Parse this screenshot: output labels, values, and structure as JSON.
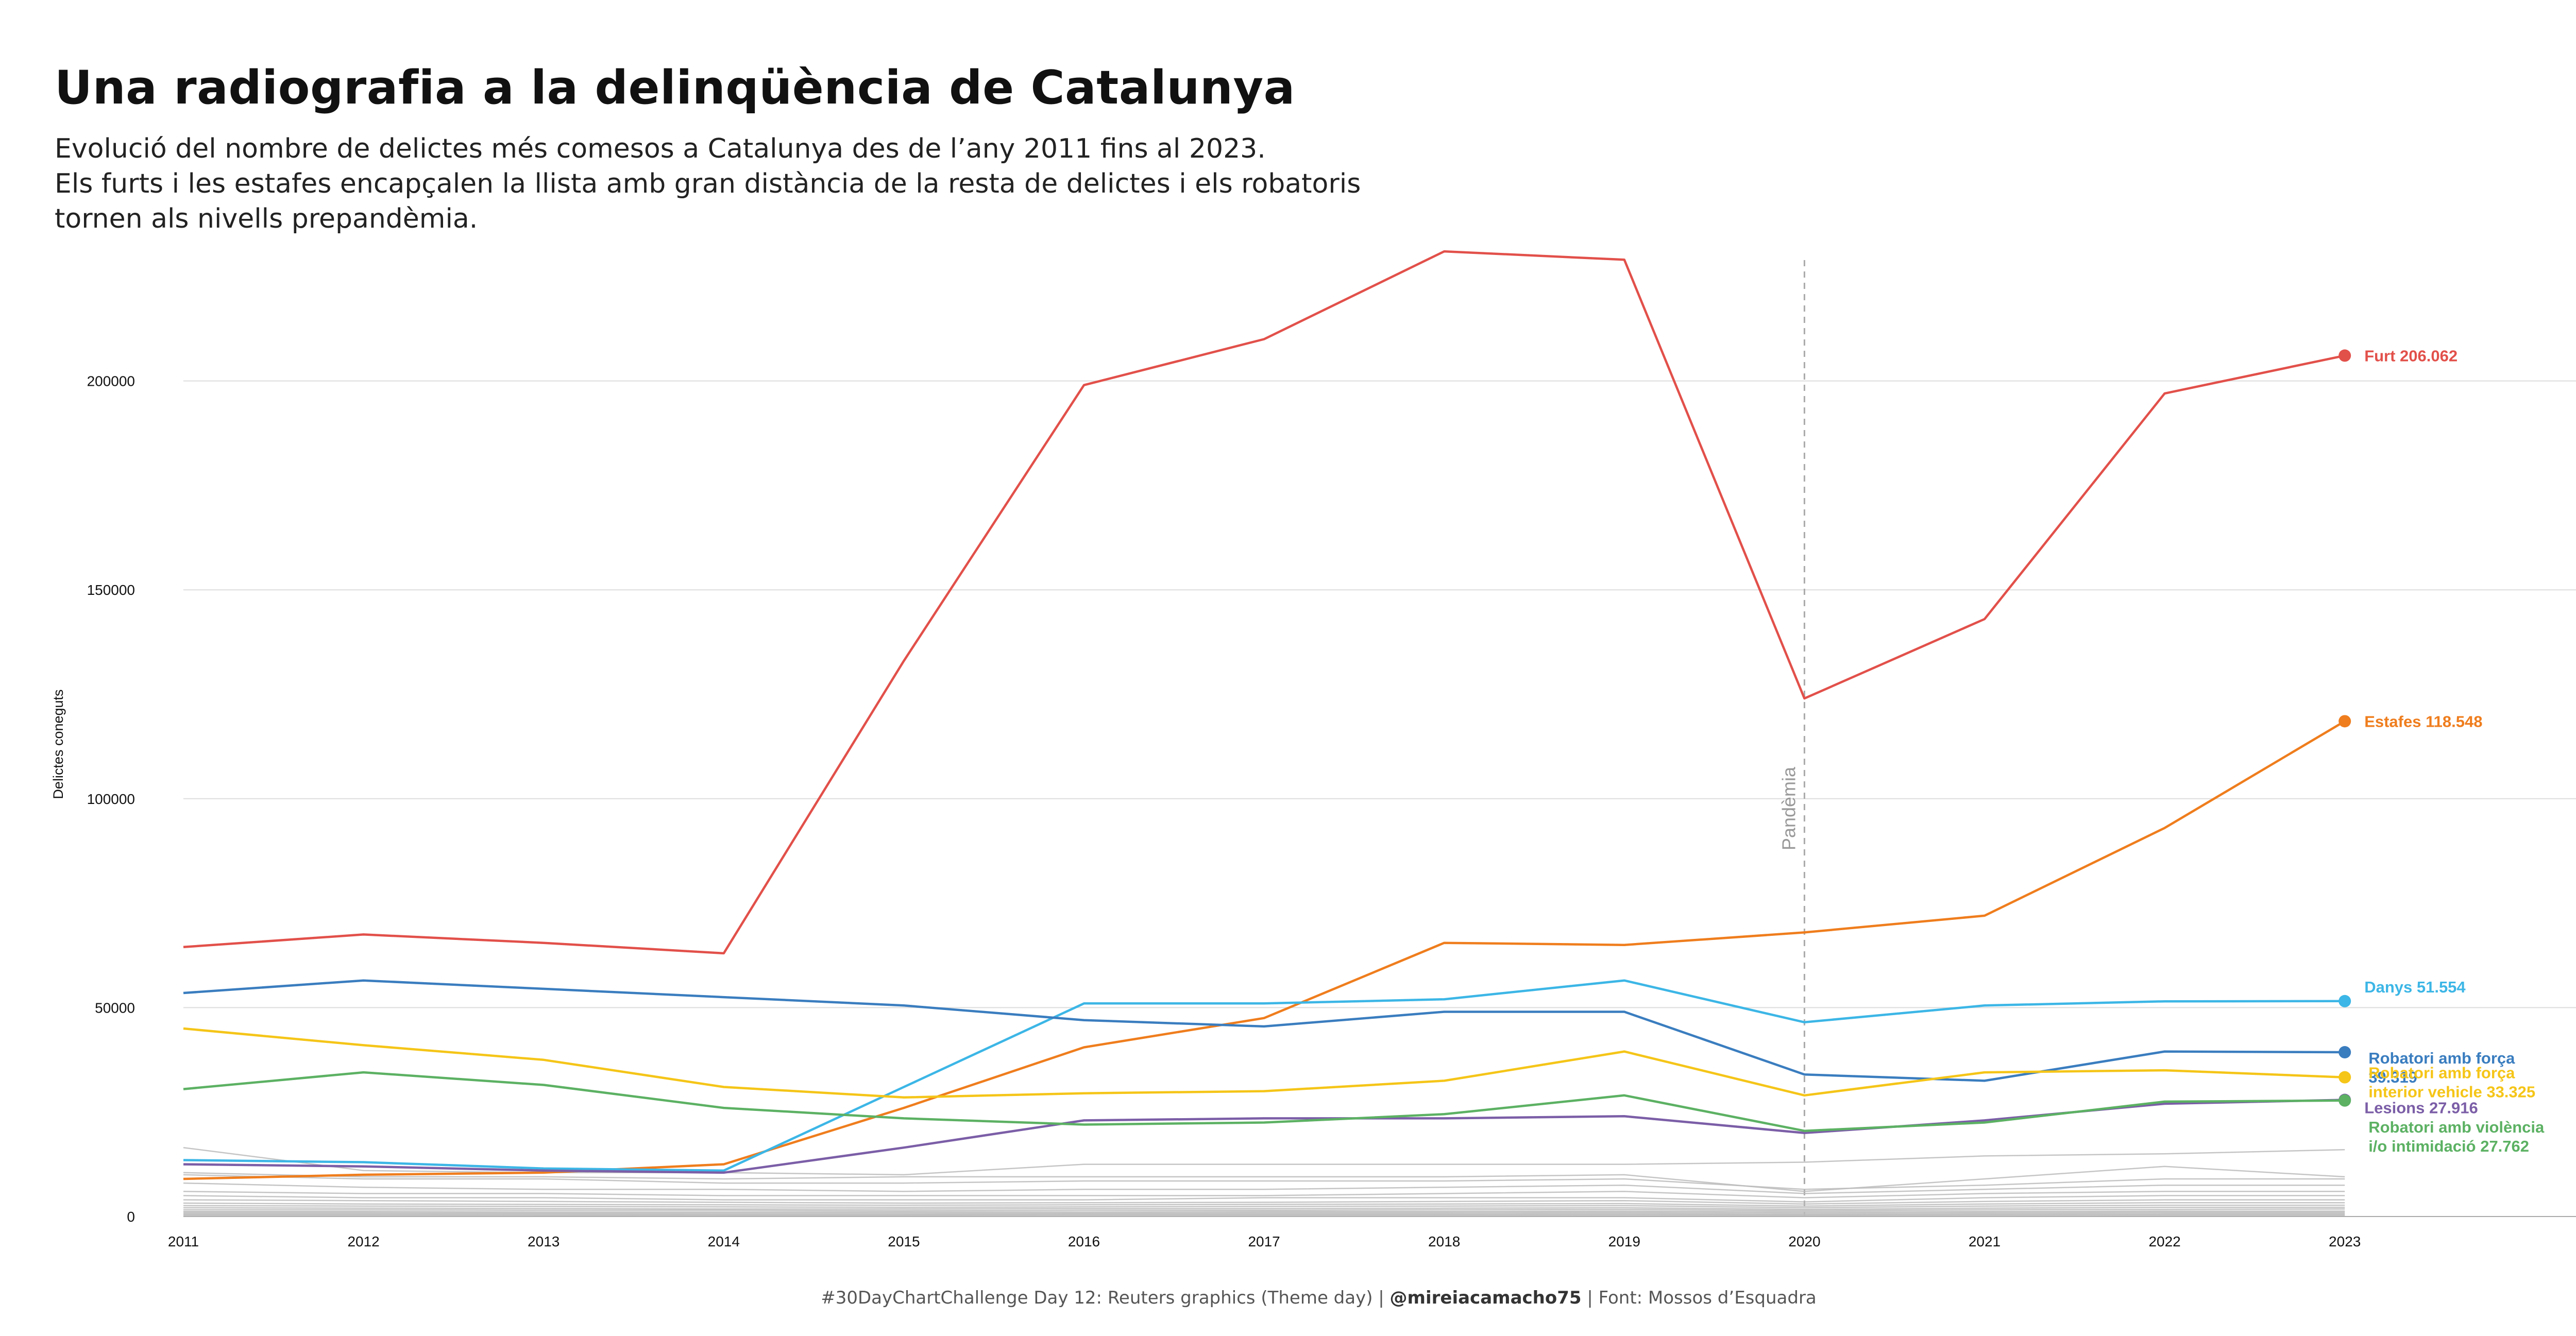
{
  "page": {
    "title": "Una radiografia a la delinqüència de Catalunya",
    "subtitle_lines": [
      "Evolució del nombre de delictes més comesos a Catalunya des de l’any 2011 fins al 2023.",
      "Els furts i les estafes encapçalen la llista amb gran distància de la resta de delictes i els robatoris",
      "tornen als nivells prepandèmia."
    ],
    "caption": {
      "prefix": "#30DayChartChallenge Day 12: Reuters graphics (Theme day) | ",
      "handle": "@mireiacamacho75",
      "suffix": " | Font: Mossos d’Esquadra"
    }
  },
  "chart_data": {
    "type": "line",
    "title": "Una radiografia a la delinqüència de Catalunya",
    "xlabel": "",
    "ylabel": "Delictes coneguts",
    "x": [
      2011,
      2012,
      2013,
      2014,
      2015,
      2016,
      2017,
      2018,
      2019,
      2020,
      2021,
      2022,
      2023
    ],
    "xlim": [
      2011,
      2024.3
    ],
    "ylim": [
      0,
      232000
    ],
    "yticks": [
      0,
      50000,
      100000,
      150000,
      200000
    ],
    "ytick_labels": [
      "0",
      "50000",
      "100000",
      "150000",
      "200000"
    ],
    "grid": "horizontal",
    "annotation": {
      "x": 2020,
      "text": "Pandèmia",
      "style": "dashed vertical line"
    },
    "series": [
      {
        "label": "Furt 206.062",
        "color": "#e2504a",
        "values": [
          64500,
          67500,
          65500,
          63000,
          133000,
          199000,
          210000,
          231000,
          229000,
          124000,
          143000,
          197000,
          206062
        ]
      },
      {
        "label": "Estafes 118.548",
        "color": "#ef7d1d",
        "values": [
          9000,
          10000,
          10500,
          12500,
          26000,
          40500,
          47500,
          65500,
          65000,
          68000,
          72000,
          93000,
          118548
        ]
      },
      {
        "label": "Danys 51.554",
        "color": "#3cb6e6",
        "values": [
          13500,
          13000,
          11500,
          11000,
          31000,
          51000,
          51000,
          52000,
          56500,
          46500,
          50500,
          51500,
          51554
        ]
      },
      {
        "label_lines": [
          "Robatori amb força",
          "39.319"
        ],
        "color": "#3a7dbf",
        "values": [
          53500,
          56500,
          54500,
          52500,
          50500,
          47000,
          45500,
          49000,
          49000,
          34000,
          32500,
          39500,
          39319
        ]
      },
      {
        "label_lines": [
          "Robatori amb força",
          "interior vehicle 33.325"
        ],
        "color": "#f5c518",
        "values": [
          45000,
          41000,
          37500,
          31000,
          28500,
          29500,
          30000,
          32500,
          39500,
          29000,
          34500,
          35000,
          33325
        ]
      },
      {
        "label": "Lesions 27.916",
        "color": "#7b5ea7",
        "values": [
          12500,
          12000,
          11000,
          10500,
          16500,
          23000,
          23500,
          23500,
          24000,
          20000,
          23000,
          27000,
          27916
        ]
      },
      {
        "label_lines": [
          "Robatori amb violència",
          "i/o intimidació 27.762"
        ],
        "color": "#5cb163",
        "values": [
          30500,
          34500,
          31500,
          26000,
          23500,
          22000,
          22500,
          24500,
          29000,
          20500,
          22500,
          27500,
          27762
        ]
      }
    ],
    "background_series_color": "#bbbbbb",
    "background_series": [
      [
        16500,
        11000,
        10500,
        10500,
        10000,
        12500,
        12500,
        12500,
        12500,
        13000,
        14500,
        15000,
        16000
      ],
      [
        10500,
        9500,
        9500,
        9000,
        9500,
        9500,
        9500,
        9500,
        10000,
        6000,
        9000,
        12000,
        9500
      ],
      [
        10000,
        9000,
        9000,
        8000,
        8000,
        8500,
        8500,
        8500,
        9000,
        6500,
        7500,
        9000,
        9000
      ],
      [
        8000,
        7000,
        6500,
        6500,
        6000,
        6500,
        6500,
        7000,
        7500,
        5500,
        6500,
        7500,
        7500
      ],
      [
        6000,
        5500,
        5500,
        5000,
        5000,
        5000,
        5000,
        5500,
        6000,
        4500,
        5500,
        6000,
        6000
      ],
      [
        5000,
        4500,
        4500,
        4000,
        4000,
        4000,
        4500,
        4500,
        4500,
        3500,
        4500,
        5000,
        5000
      ],
      [
        4000,
        3800,
        3600,
        3400,
        3200,
        3300,
        3400,
        3600,
        3800,
        3000,
        3600,
        4000,
        4000
      ],
      [
        3200,
        3000,
        2900,
        2800,
        2700,
        2800,
        2900,
        3000,
        3100,
        2500,
        3000,
        3300,
        3300
      ],
      [
        2600,
        2500,
        2400,
        2300,
        2200,
        2300,
        2400,
        2500,
        2600,
        2100,
        2500,
        2700,
        2700
      ],
      [
        2100,
        2000,
        1900,
        1800,
        1800,
        1900,
        1900,
        2000,
        2100,
        1700,
        2000,
        2200,
        2200
      ],
      [
        1600,
        1600,
        1500,
        1500,
        1400,
        1500,
        1500,
        1600,
        1700,
        1400,
        1600,
        1700,
        1800
      ],
      [
        1200,
        1200,
        1100,
        1100,
        1100,
        1100,
        1200,
        1200,
        1300,
        1100,
        1200,
        1300,
        1300
      ],
      [
        900,
        900,
        800,
        800,
        800,
        800,
        900,
        900,
        1000,
        800,
        900,
        1000,
        1000
      ],
      [
        600,
        600,
        600,
        500,
        500,
        600,
        600,
        600,
        700,
        500,
        600,
        700,
        700
      ],
      [
        400,
        400,
        350,
        350,
        350,
        400,
        400,
        400,
        450,
        350,
        400,
        450,
        450
      ],
      [
        200,
        200,
        200,
        200,
        200,
        200,
        200,
        200,
        250,
        200,
        200,
        250,
        250
      ]
    ]
  }
}
